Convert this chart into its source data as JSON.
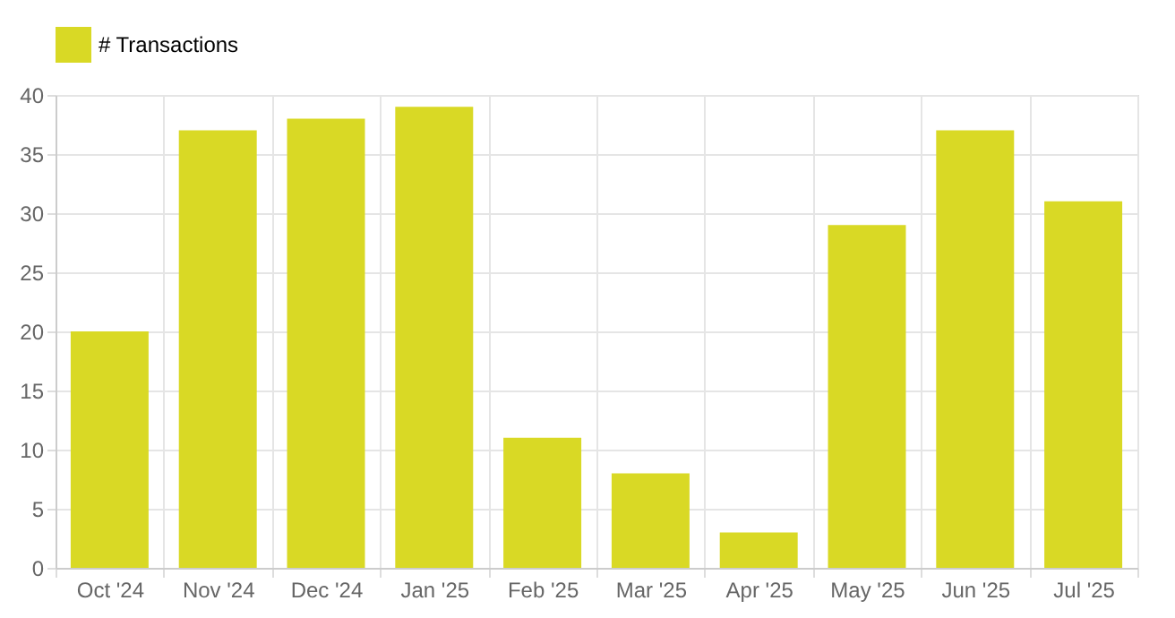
{
  "chart_data": {
    "type": "bar",
    "categories": [
      "Oct '24",
      "Nov '24",
      "Dec '24",
      "Jan '25",
      "Feb '25",
      "Mar '25",
      "Apr '25",
      "May '25",
      "Jun '25",
      "Jul '25"
    ],
    "series": [
      {
        "name": "# Transactions",
        "color": "#d9d925",
        "values": [
          20,
          37,
          38,
          39,
          11,
          8,
          3,
          29,
          37,
          31
        ]
      }
    ],
    "ylim": [
      0,
      40
    ],
    "yticks": [
      0,
      5,
      10,
      15,
      20,
      25,
      30,
      35,
      40
    ],
    "grid": true,
    "legend": "top"
  }
}
